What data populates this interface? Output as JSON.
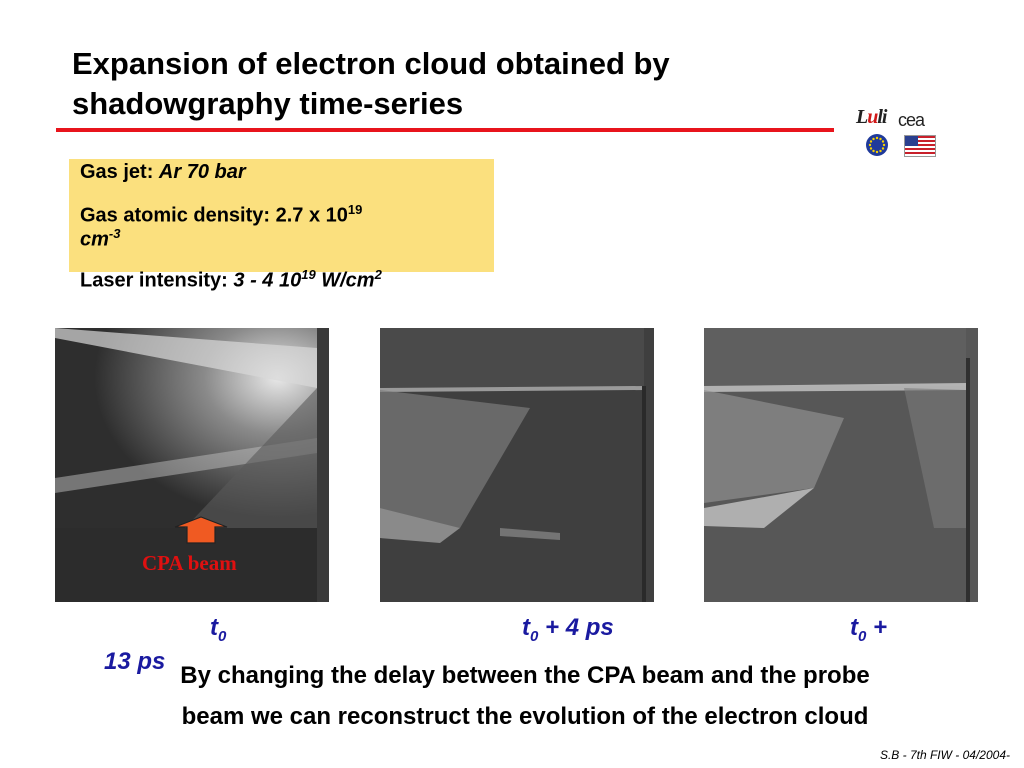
{
  "slide": {
    "title_line1": "Expansion of electron cloud obtained by",
    "title_line2": "shadowgraphy time-series",
    "logos": {
      "lab": "LULI",
      "org": "cea"
    },
    "info": {
      "gas_jet_label": "Gas jet: ",
      "gas_jet_value": "Ar 70 bar",
      "density_label": "Gas atomic density: 2.7 x 10",
      "density_exp": "19",
      "density_unit": "cm",
      "density_unit_exp": "-3",
      "intensity_label": "Laser intensity: ",
      "intensity_value": "3 - 4 10",
      "intensity_exp": "19",
      "intensity_unit": " W/cm",
      "intensity_unit_exp": "2"
    },
    "cpa_label": "CPA beam",
    "times": {
      "t1_base": "t",
      "t1_sub": "0",
      "t2_base": "t",
      "t2_sub": "0",
      "t2_rest": " + 4 ps",
      "t3_base": "t",
      "t3_sub": "0",
      "t3_rest": " +",
      "t3_wrap": "13 ps"
    },
    "caption_line1": "By changing the delay between the CPA beam and the probe",
    "caption_line2": "beam we can reconstruct the evolution of the electron cloud",
    "footer": "S.B - 7th FIW - 04/2004-"
  }
}
